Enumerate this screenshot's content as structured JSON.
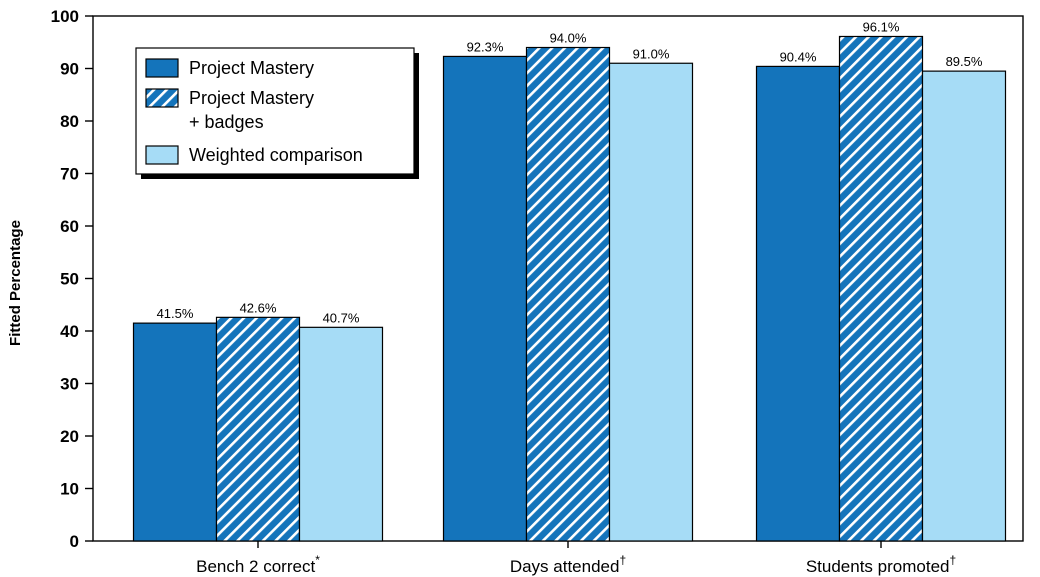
{
  "chart_data": {
    "type": "bar",
    "ylabel": "Fitted Percentage",
    "ylim": [
      0,
      100
    ],
    "yticks": [
      0,
      10,
      20,
      30,
      40,
      50,
      60,
      70,
      80,
      90,
      100
    ],
    "categories": [
      {
        "label": "Bench 2 correct",
        "mark": "*"
      },
      {
        "label": "Days attended",
        "mark": "†"
      },
      {
        "label": "Students promoted",
        "mark": "†"
      }
    ],
    "series": [
      {
        "name": "Project Mastery",
        "style": "solid",
        "color": "#1474bb",
        "values": [
          41.5,
          92.3,
          90.4
        ],
        "labels": [
          "41.5%",
          "92.3%",
          "90.4%"
        ]
      },
      {
        "name": "Project Mastery\n+ badges",
        "style": "hatched",
        "color": "#1474bb",
        "values": [
          42.6,
          94.0,
          96.1
        ],
        "labels": [
          "42.6%",
          "94.0%",
          "96.1%"
        ]
      },
      {
        "name": "Weighted comparison",
        "style": "solid",
        "color": "#a6dcf6",
        "values": [
          40.7,
          91.0,
          89.5
        ],
        "labels": [
          "40.7%",
          "91.0%",
          "89.5%"
        ]
      }
    ],
    "legend": {
      "position": "top-left"
    },
    "grid": false
  }
}
